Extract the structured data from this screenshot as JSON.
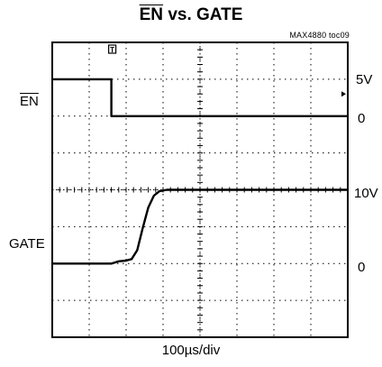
{
  "chart_data": {
    "type": "line",
    "title_signal": "EN",
    "title_rest": "vs. GATE",
    "figure_code": "MAX4880 toc09",
    "xlabel": "100µs/div",
    "divisions": {
      "x": 8,
      "y": 8
    },
    "channels": [
      {
        "name": "EN",
        "name_overline": true,
        "labels": [
          "5V",
          "0"
        ],
        "points": [
          [
            0,
            5
          ],
          [
            1.6,
            5
          ],
          [
            1.6,
            0
          ],
          [
            8,
            0
          ]
        ]
      },
      {
        "name": "GATE",
        "name_overline": false,
        "labels": [
          "10V",
          "0"
        ],
        "points": [
          [
            0,
            0
          ],
          [
            1.6,
            0
          ],
          [
            1.8,
            0.3
          ],
          [
            2.0,
            0.4
          ],
          [
            2.15,
            0.6
          ],
          [
            2.3,
            1.8
          ],
          [
            2.45,
            4.8
          ],
          [
            2.6,
            7.6
          ],
          [
            2.75,
            9.2
          ],
          [
            2.9,
            9.8
          ],
          [
            3.1,
            10
          ],
          [
            8,
            10
          ]
        ]
      }
    ],
    "trigger_marker": "T",
    "grid": true
  }
}
